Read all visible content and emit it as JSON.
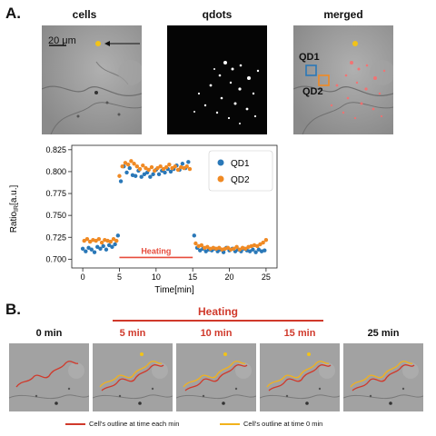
{
  "panel_a": {
    "letter": "A.",
    "titles": {
      "cells": "cells",
      "qdots": "qdots",
      "merged": "merged"
    },
    "scale_bar_label": "20 μm",
    "qd1_label": "QD1",
    "qd2_label": "QD2"
  },
  "chart_data": {
    "type": "scatter",
    "xlabel": "Time[min]",
    "ylabel": "Ratio",
    "ylabel_sub": "IR",
    "ylabel_unit": "[a.u.]",
    "xlim": [
      -1.5,
      26.5
    ],
    "ylim": [
      0.69,
      0.83
    ],
    "xticks": [
      0,
      5,
      10,
      15,
      20,
      25
    ],
    "yticks": [
      0.7,
      0.725,
      0.75,
      0.775,
      0.8,
      0.825
    ],
    "ytick_labels": [
      "0.700",
      "0.725",
      "0.750",
      "0.775",
      "0.800",
      "0.825"
    ],
    "legend_position": "top-right",
    "annotation": {
      "text": "Heating",
      "x_start": 5,
      "x_end": 15,
      "y": 0.702,
      "color": "#e74c3c"
    },
    "series": [
      {
        "name": "QD1",
        "color": "#2a78b8",
        "x": [
          0.0,
          0.4,
          0.8,
          1.2,
          1.6,
          2.0,
          2.4,
          2.8,
          3.2,
          3.6,
          4.0,
          4.4,
          4.8,
          5.2,
          5.6,
          6.0,
          6.4,
          6.8,
          7.2,
          7.6,
          8.0,
          8.4,
          8.8,
          9.2,
          9.6,
          10.0,
          10.4,
          10.8,
          11.2,
          11.6,
          12.0,
          12.4,
          12.8,
          13.2,
          13.6,
          14.0,
          14.4,
          15.2,
          15.6,
          16.0,
          16.4,
          16.8,
          17.2,
          17.6,
          18.0,
          18.4,
          18.8,
          19.2,
          19.6,
          20.0,
          20.4,
          20.8,
          21.2,
          21.6,
          22.0,
          22.4,
          22.8,
          23.2,
          23.6,
          24.0,
          24.4,
          24.8
        ],
        "y": [
          0.712,
          0.709,
          0.713,
          0.711,
          0.708,
          0.714,
          0.712,
          0.715,
          0.711,
          0.716,
          0.714,
          0.717,
          0.727,
          0.789,
          0.806,
          0.799,
          0.804,
          0.796,
          0.795,
          0.801,
          0.794,
          0.797,
          0.799,
          0.794,
          0.797,
          0.802,
          0.797,
          0.801,
          0.799,
          0.803,
          0.8,
          0.803,
          0.807,
          0.802,
          0.809,
          0.804,
          0.811,
          0.727,
          0.713,
          0.71,
          0.712,
          0.709,
          0.711,
          0.71,
          0.712,
          0.709,
          0.711,
          0.708,
          0.713,
          0.71,
          0.712,
          0.709,
          0.711,
          0.709,
          0.712,
          0.71,
          0.709,
          0.711,
          0.708,
          0.711,
          0.709,
          0.71
        ]
      },
      {
        "name": "QD2",
        "color": "#f08a24",
        "x": [
          0.2,
          0.6,
          1.0,
          1.4,
          1.8,
          2.2,
          2.6,
          3.0,
          3.4,
          3.8,
          4.2,
          4.6,
          5.0,
          5.4,
          5.8,
          6.2,
          6.6,
          7.0,
          7.4,
          7.8,
          8.2,
          8.6,
          9.0,
          9.4,
          9.8,
          10.2,
          10.6,
          11.0,
          11.4,
          11.8,
          12.2,
          12.6,
          13.0,
          13.4,
          13.8,
          14.2,
          14.6,
          15.4,
          15.8,
          16.2,
          16.6,
          17.0,
          17.4,
          17.8,
          18.2,
          18.6,
          19.0,
          19.4,
          19.8,
          20.2,
          20.6,
          21.0,
          21.4,
          21.8,
          22.2,
          22.6,
          23.0,
          23.4,
          23.8,
          24.2,
          24.6,
          25.0
        ],
        "y": [
          0.721,
          0.723,
          0.72,
          0.722,
          0.721,
          0.723,
          0.719,
          0.722,
          0.721,
          0.72,
          0.723,
          0.721,
          0.795,
          0.806,
          0.81,
          0.808,
          0.812,
          0.809,
          0.806,
          0.803,
          0.807,
          0.804,
          0.802,
          0.805,
          0.801,
          0.804,
          0.806,
          0.803,
          0.805,
          0.808,
          0.804,
          0.806,
          0.802,
          0.805,
          0.804,
          0.806,
          0.803,
          0.718,
          0.715,
          0.716,
          0.713,
          0.714,
          0.712,
          0.713,
          0.712,
          0.713,
          0.711,
          0.712,
          0.713,
          0.711,
          0.712,
          0.714,
          0.711,
          0.713,
          0.712,
          0.714,
          0.715,
          0.716,
          0.715,
          0.717,
          0.719,
          0.722
        ]
      }
    ]
  },
  "panel_b": {
    "letter": "B.",
    "heating_label": "Heating",
    "time_labels": [
      "0 min",
      "5 min",
      "10 min",
      "15 min",
      "25 min"
    ],
    "legend_red": "Cell's outline at time each min",
    "legend_yellow": "Cell's outline at time 0 min",
    "colors": {
      "red": "#d0392b",
      "yellow": "#f2b21c"
    }
  }
}
